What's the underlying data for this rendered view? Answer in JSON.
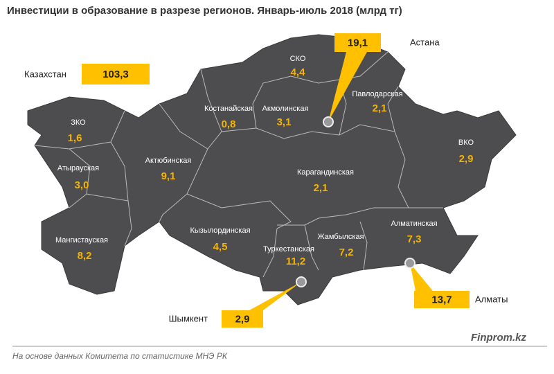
{
  "title": "Инвестиции  в образование в разрезе регионов. Январь-июль  2018 (млрд  тг)",
  "total": {
    "label": "Казахстан",
    "value": "103,3"
  },
  "regions": [
    {
      "name": "ЗКО",
      "value": "1,6"
    },
    {
      "name": "Атырауская",
      "value": "3,0"
    },
    {
      "name": "Мангистауская",
      "value": "8,2"
    },
    {
      "name": "Актюбинская",
      "value": "9,1"
    },
    {
      "name": "Костанайская",
      "value": "0,8"
    },
    {
      "name": "СКО",
      "value": "4,4"
    },
    {
      "name": "Акмолинская",
      "value": "3,1"
    },
    {
      "name": "Павлодарская",
      "value": "2,1"
    },
    {
      "name": "ВКО",
      "value": "2,9"
    },
    {
      "name": "Карагандинская",
      "value": "2,1"
    },
    {
      "name": "Кызылординская",
      "value": "4,5"
    },
    {
      "name": "Туркестанская",
      "value": "11,2"
    },
    {
      "name": "Жамбылская",
      "value": "7,2"
    },
    {
      "name": "Алматинская",
      "value": "7,3"
    }
  ],
  "cities": [
    {
      "name": "Астана",
      "value": "19,1"
    },
    {
      "name": "Алматы",
      "value": "13,7"
    },
    {
      "name": "Шымкент",
      "value": "2,9"
    }
  ],
  "source": "На основе данных Комитета по статистике МНЭ РК",
  "brand": "Finprom.kz"
}
